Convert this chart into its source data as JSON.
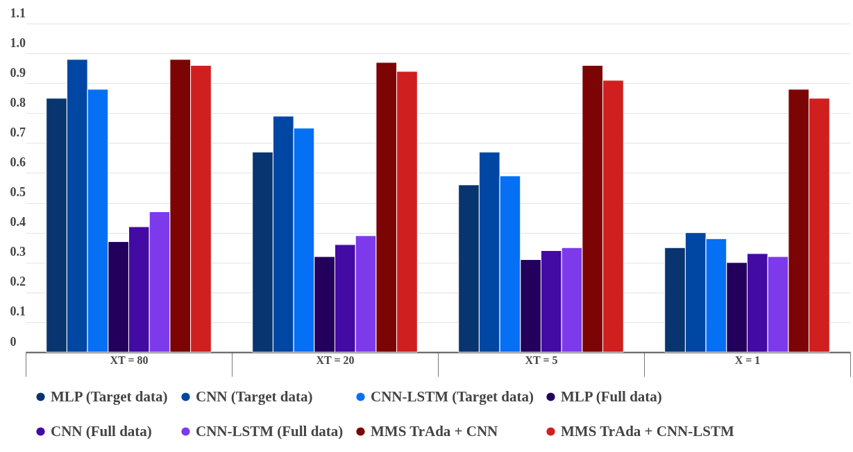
{
  "chart_data": {
    "type": "bar",
    "categories": [
      "XT = 80",
      "XT = 20",
      "XT = 5",
      "X = 1"
    ],
    "series": [
      {
        "name": "MLP (Target data)",
        "color": "#08356f",
        "values": [
          0.85,
          0.67,
          0.56,
          0.35
        ]
      },
      {
        "name": "CNN (Target data)",
        "color": "#0047a3",
        "values": [
          0.98,
          0.79,
          0.67,
          0.4
        ]
      },
      {
        "name": "CNN-LSTM (Target data)",
        "color": "#0670f5",
        "values": [
          0.88,
          0.75,
          0.59,
          0.38
        ]
      },
      {
        "name": "MLP (Full data)",
        "color": "#22005c",
        "values": [
          0.37,
          0.32,
          0.31,
          0.3
        ]
      },
      {
        "name": "CNN (Full data)",
        "color": "#430aa4",
        "values": [
          0.42,
          0.36,
          0.34,
          0.33
        ]
      },
      {
        "name": "CNN-LSTM (Full data)",
        "color": "#7c3aeb",
        "values": [
          0.47,
          0.39,
          0.35,
          0.32
        ]
      },
      {
        "name": "MMS TrAda + CNN",
        "color": "#7d0404",
        "values": [
          0.98,
          0.97,
          0.96,
          0.88
        ]
      },
      {
        "name": "MMS TrAda + CNN-LSTM",
        "color": "#cf1f1f",
        "values": [
          0.96,
          0.94,
          0.91,
          0.85
        ]
      }
    ],
    "ylim": [
      0,
      1.1
    ],
    "yticks": [
      0,
      {
        "value": 0.1,
        "label": "0.1"
      },
      {
        "value": 0.2,
        "label": "0.2"
      },
      {
        "value": 0.3,
        "label": "0.3"
      },
      {
        "value": 0.4,
        "label": "0.4"
      },
      {
        "value": 0.5,
        "label": "0.5"
      },
      {
        "value": 0.6,
        "label": "0.6"
      },
      {
        "value": 0.7,
        "label": "0.7"
      },
      {
        "value": 0.8,
        "label": "0.8"
      },
      {
        "value": 0.9,
        "label": "0.9"
      },
      {
        "value": 1.0,
        "label": "1.0"
      },
      {
        "value": 1.1,
        "label": "1.1"
      }
    ],
    "grid": "y",
    "legend": "bottom",
    "marker": "circle"
  }
}
